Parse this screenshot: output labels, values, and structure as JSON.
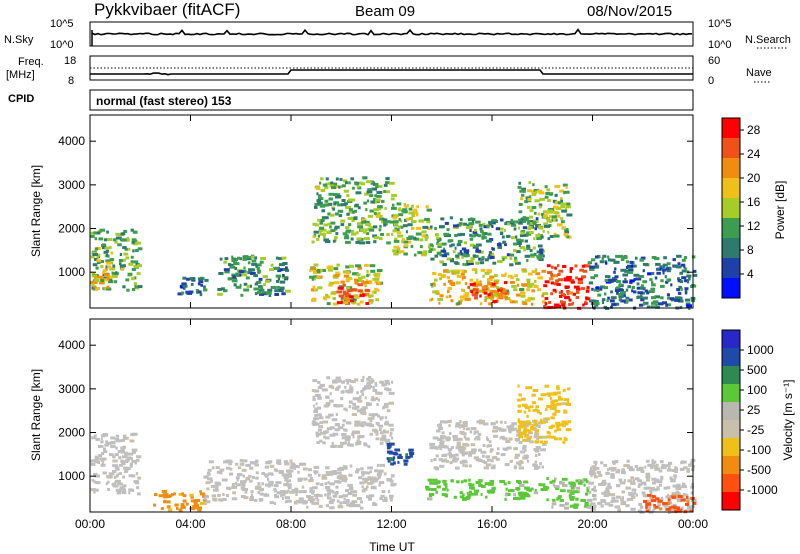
{
  "header": {
    "station": "Pykkvibaer (fitACF)",
    "beam": "Beam 09",
    "date": "08/Nov/2015"
  },
  "noise_panel": {
    "left_label": "N.Sky",
    "left_ticks": [
      "10^5",
      "10^0"
    ],
    "right_label": "N.Search",
    "right_ticks": [
      "10^5",
      "10^0"
    ]
  },
  "freq_panel": {
    "left_label_1": "Freq.",
    "left_label_2": "[MHz]",
    "left_ticks": [
      "18",
      "8"
    ],
    "right_label": "Nave",
    "right_ticks": [
      "60",
      "0"
    ]
  },
  "cpid": {
    "label": "CPID",
    "value": "normal (fast stereo) 153"
  },
  "colors": {
    "power_scale": [
      "#0010ff",
      "#1f40a8",
      "#2e7a6e",
      "#3c9c50",
      "#a8cc26",
      "#f0c01a",
      "#f08c10",
      "#f0501a",
      "#ff0000"
    ],
    "velocity_scale": [
      "#2828c8",
      "#1f4aa8",
      "#2e8a50",
      "#5ac838",
      "#b8b8b0",
      "#c8c0a8",
      "#f0c01a",
      "#f08c10",
      "#ff5010",
      "#ff0000"
    ],
    "ground_scatter": "#bfbfbf"
  },
  "chart_data": [
    {
      "type": "heatmap",
      "title": "",
      "xlabel": "",
      "ylabel": "Slant Range [km]",
      "x_ticks": [
        "00:00",
        "04:00",
        "08:00",
        "12:00",
        "16:00",
        "20:00",
        "00:00"
      ],
      "xlim_hours": [
        0,
        24
      ],
      "y_ticks": [
        1000,
        2000,
        3000,
        4000
      ],
      "ylim": [
        180,
        4600
      ],
      "colorbar": {
        "label": "Power [dB]",
        "ticks": [
          4,
          8,
          12,
          16,
          20,
          24,
          28
        ],
        "range": [
          0,
          30
        ]
      },
      "echo_regions": [
        {
          "t0": 0.0,
          "t1": 1.9,
          "r0": 600,
          "r1": 2000,
          "dB": 12
        },
        {
          "t0": 0.0,
          "t1": 0.7,
          "r0": 600,
          "r1": 1300,
          "dB": 18
        },
        {
          "t0": 3.4,
          "t1": 4.6,
          "r0": 500,
          "r1": 900,
          "dB": 8
        },
        {
          "t0": 5.0,
          "t1": 7.8,
          "r0": 500,
          "r1": 1400,
          "dB": 10
        },
        {
          "t0": 8.7,
          "t1": 11.5,
          "r0": 300,
          "r1": 1200,
          "dB": 16
        },
        {
          "t0": 9.8,
          "t1": 11.0,
          "r0": 300,
          "r1": 900,
          "dB": 24
        },
        {
          "t0": 8.8,
          "t1": 12.0,
          "r0": 1700,
          "r1": 3200,
          "dB": 12
        },
        {
          "t0": 12.0,
          "t1": 13.5,
          "r0": 1400,
          "r1": 2600,
          "dB": 14
        },
        {
          "t0": 13.5,
          "t1": 18.0,
          "r0": 300,
          "r1": 1100,
          "dB": 18
        },
        {
          "t0": 15.0,
          "t1": 16.6,
          "r0": 350,
          "r1": 800,
          "dB": 26
        },
        {
          "t0": 13.5,
          "t1": 18.0,
          "r0": 1200,
          "r1": 2300,
          "dB": 10
        },
        {
          "t0": 17.0,
          "t1": 19.0,
          "r0": 1800,
          "r1": 3100,
          "dB": 14
        },
        {
          "t0": 18.0,
          "t1": 19.8,
          "r0": 200,
          "r1": 1200,
          "dB": 28
        },
        {
          "t0": 19.8,
          "t1": 24.0,
          "r0": 200,
          "r1": 1400,
          "dB": 8
        }
      ]
    },
    {
      "type": "heatmap",
      "title": "",
      "xlabel": "Time UT",
      "ylabel": "Slant Range [km]",
      "x_ticks": [
        "00:00",
        "04:00",
        "08:00",
        "12:00",
        "16:00",
        "20:00",
        "00:00"
      ],
      "xlim_hours": [
        0,
        24
      ],
      "y_ticks": [
        1000,
        2000,
        3000,
        4000
      ],
      "ylim": [
        180,
        4600
      ],
      "colorbar": {
        "label": "Velocity [m s⁻¹]",
        "ticks": [
          "1000",
          "500",
          "100",
          "25",
          "-25",
          "-100",
          "-500",
          "-1000"
        ]
      },
      "echo_regions": [
        {
          "t0": 0.0,
          "t1": 1.9,
          "r0": 600,
          "r1": 2000,
          "v": 0
        },
        {
          "t0": 2.5,
          "t1": 4.5,
          "r0": 250,
          "r1": 700,
          "v": -150
        },
        {
          "t0": 4.5,
          "t1": 8.5,
          "r0": 400,
          "r1": 1400,
          "v": 0
        },
        {
          "t0": 8.6,
          "t1": 12.0,
          "r0": 300,
          "r1": 1300,
          "v": 0
        },
        {
          "t0": 8.8,
          "t1": 12.0,
          "r0": 1700,
          "r1": 3300,
          "v": 0
        },
        {
          "t0": 11.8,
          "t1": 12.8,
          "r0": 1300,
          "r1": 1800,
          "v": 700
        },
        {
          "t0": 13.3,
          "t1": 18.0,
          "r0": 500,
          "r1": 950,
          "v": 150
        },
        {
          "t0": 13.5,
          "t1": 18.0,
          "r0": 1200,
          "r1": 2300,
          "v": 0
        },
        {
          "t0": 17.0,
          "t1": 19.0,
          "r0": 1800,
          "r1": 3100,
          "v": -40
        },
        {
          "t0": 18.0,
          "t1": 20.0,
          "r0": 300,
          "r1": 1000,
          "v": 120
        },
        {
          "t0": 19.8,
          "t1": 24.0,
          "r0": 200,
          "r1": 1400,
          "v": 0
        },
        {
          "t0": 22.0,
          "t1": 24.0,
          "r0": 200,
          "r1": 600,
          "v": -300
        }
      ]
    }
  ]
}
